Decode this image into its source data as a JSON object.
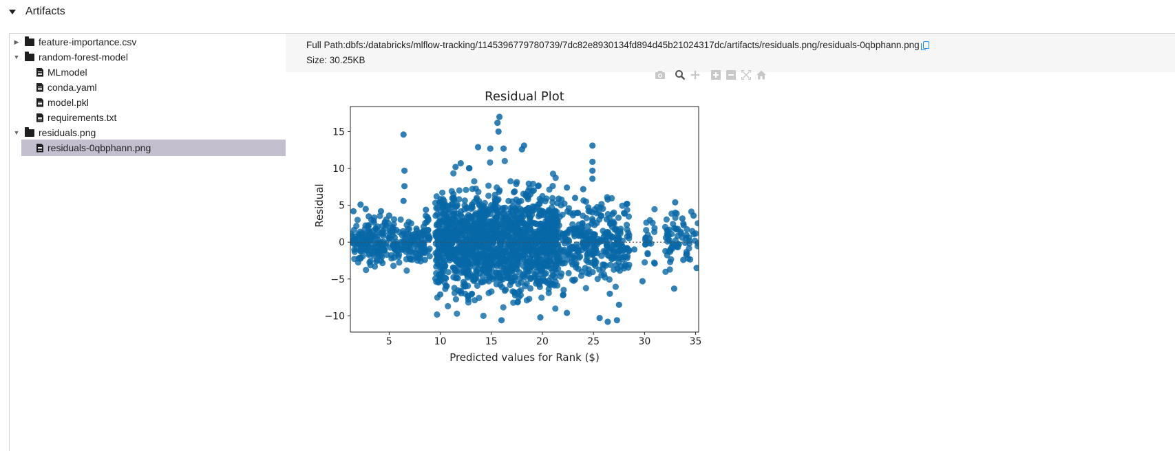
{
  "section": {
    "title": "Artifacts"
  },
  "tree": [
    {
      "type": "folder",
      "label": "feature-importance.csv",
      "expanded": false,
      "depth": 0
    },
    {
      "type": "folder",
      "label": "random-forest-model",
      "expanded": true,
      "depth": 0
    },
    {
      "type": "file",
      "label": "MLmodel",
      "depth": 1
    },
    {
      "type": "file",
      "label": "conda.yaml",
      "depth": 1
    },
    {
      "type": "file",
      "label": "model.pkl",
      "depth": 1
    },
    {
      "type": "file",
      "label": "requirements.txt",
      "depth": 1
    },
    {
      "type": "folder",
      "label": "residuals.png",
      "expanded": true,
      "depth": 0
    },
    {
      "type": "file",
      "label": "residuals-0qbphann.png",
      "depth": 1,
      "selected": true
    }
  ],
  "viewer": {
    "full_path": "Full Path:dbfs:/databricks/mlflow-tracking/1145396779780739/7dc82e8930134fd894d45b21024317dc/artifacts/residuals.png/residuals-0qbphann.png",
    "size": "Size: 30.25KB",
    "modebar": [
      "camera-icon",
      "zoom-icon",
      "pan-icon",
      "zoom-in-icon",
      "zoom-out-icon",
      "autoscale-icon",
      "home-icon"
    ]
  },
  "chart_data": {
    "type": "scatter",
    "title": "Residual Plot",
    "xlabel": "Predicted values for Rank ($)",
    "ylabel": "Residual",
    "xlim": [
      1.2,
      35.3
    ],
    "ylim": [
      -12.2,
      18.4
    ],
    "xticks": [
      5,
      10,
      15,
      20,
      25,
      30,
      35
    ],
    "yticks": [
      -10,
      -5,
      0,
      5,
      10,
      15
    ],
    "xtick_labels": [
      "5",
      "10",
      "15",
      "20",
      "25",
      "30",
      "35"
    ],
    "ytick_labels": [
      "−10",
      "−5",
      "0",
      "5",
      "10",
      "15"
    ],
    "marker_color": "#0868a8",
    "grid": false,
    "reference_line_y": 0,
    "series": [
      {
        "values": [
          [
            6.4,
            14.6
          ],
          [
            6.5,
            9.7
          ],
          [
            6.5,
            7.6
          ],
          [
            6.4,
            5.6
          ],
          [
            15.8,
            17.0
          ],
          [
            15.6,
            16.2
          ],
          [
            15.7,
            15.0
          ],
          [
            24.9,
            13.1
          ],
          [
            24.9,
            10.9
          ],
          [
            24.9,
            9.7
          ],
          [
            24.9,
            8.6
          ],
          [
            13.7,
            12.9
          ],
          [
            18.2,
            13.1
          ],
          [
            14.9,
            12.7
          ],
          [
            16.2,
            12.7
          ],
          [
            11.5,
            10.2
          ],
          [
            12.0,
            10.7
          ],
          [
            18.0,
            12.6
          ],
          [
            26.4,
            5.8
          ],
          [
            28.3,
            5.2
          ],
          [
            33.0,
            5.4
          ],
          [
            2.2,
            5.1
          ],
          [
            2.7,
            4.5
          ],
          [
            1.5,
            4.2
          ],
          [
            3.0,
            3.5
          ],
          [
            4.2,
            4.2
          ],
          [
            5.0,
            3.6
          ],
          [
            8.6,
            4.4
          ],
          [
            8.8,
            3.2
          ],
          [
            27.3,
            -10.6
          ],
          [
            29.8,
            -5.3
          ],
          [
            32.9,
            -6.3
          ],
          [
            26.4,
            -10.8
          ],
          [
            25.6,
            -10.3
          ],
          [
            22.4,
            -9.6
          ],
          [
            16.0,
            -10.6
          ],
          [
            19.8,
            -10.2
          ],
          [
            13.1,
            -7.0
          ],
          [
            10.0,
            -7.1
          ],
          [
            27.5,
            -8.5
          ],
          [
            26.6,
            -7.0
          ],
          [
            31.0,
            -2.9
          ],
          [
            35.1,
            -3.5
          ],
          [
            33.8,
            -2.4
          ],
          [
            34.8,
            3.6
          ],
          [
            33.7,
            3.2
          ],
          [
            26.3,
            3.1
          ],
          [
            24.5,
            4.7
          ],
          [
            23.2,
            6.0
          ],
          [
            24.0,
            7.2
          ],
          [
            22.4,
            7.4
          ],
          [
            21.6,
            5.9
          ],
          [
            8.5,
            -2.4
          ],
          [
            3.8,
            -2.4
          ],
          [
            2.5,
            -0.8
          ],
          [
            6.9,
            1.1
          ],
          [
            4.4,
            -1.0
          ],
          [
            27.2,
            1.7
          ],
          [
            29.0,
            -1.0
          ],
          [
            30.5,
            0.5
          ]
        ]
      }
    ]
  }
}
